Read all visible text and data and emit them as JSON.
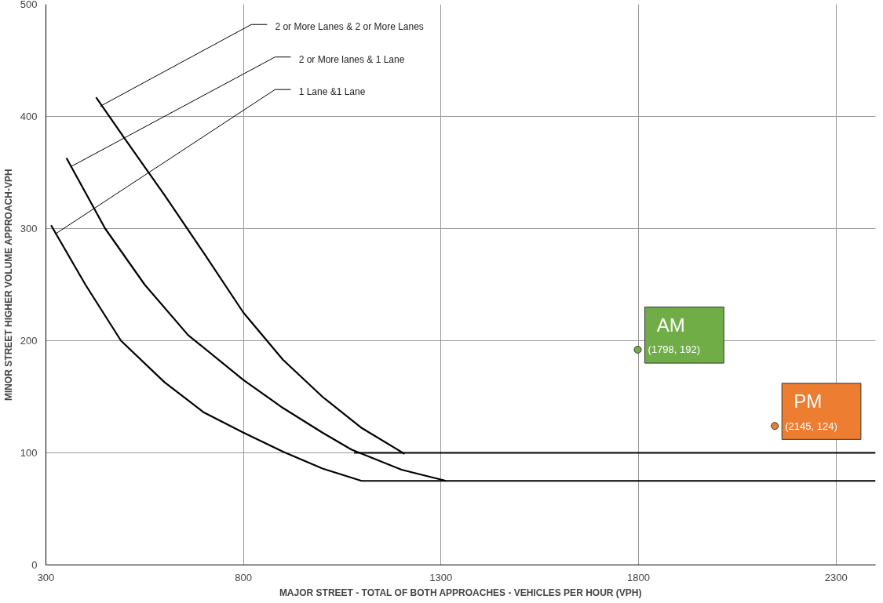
{
  "chart_data": {
    "type": "line",
    "xlabel": "MAJOR STREET - TOTAL OF BOTH APPROACHES - VEHICLES PER HOUR (VPH)",
    "ylabel": "MINOR STREET HIGHER VOLUME APPROACH-VPH",
    "xlim": [
      300,
      2400
    ],
    "ylim": [
      0,
      500
    ],
    "xticks": [
      300,
      800,
      1300,
      1800,
      2300
    ],
    "yticks": [
      0,
      100,
      200,
      300,
      400,
      500
    ],
    "grid": true,
    "legend": false,
    "marker": "none",
    "series": [
      {
        "name": "1 Lane &1 Lane",
        "color": "#000000",
        "x": [
          313,
          400,
          490,
          600,
          700,
          800,
          900,
          1000,
          1099,
          2400
        ],
        "values": [
          303,
          250,
          200,
          163,
          136,
          118,
          101,
          86,
          75,
          75
        ]
      },
      {
        "name": "2 or More lanes & 1 Lane",
        "color": "#000000",
        "x": [
          352,
          450,
          550,
          660,
          800,
          900,
          1000,
          1073,
          1200,
          1313
        ],
        "values": [
          363,
          300,
          250,
          205,
          165,
          140,
          118,
          103,
          85,
          75
        ]
      },
      {
        "name": "2 or More Lanes & 2 or More Lanes",
        "color": "#000000",
        "x": [
          427,
          500,
          600,
          700,
          800,
          900,
          1000,
          1100,
          1208
        ],
        "values": [
          417,
          380,
          330,
          278,
          225,
          183,
          150,
          122,
          99
        ]
      },
      {
        "color": "#000000",
        "x": [
          1080,
          2400
        ],
        "values": [
          100,
          100
        ]
      },
      {
        "name": "AM",
        "type": "scatter",
        "marker": "circle",
        "color": "#70ad47",
        "x": [
          1798
        ],
        "values": [
          192
        ],
        "value_labels": [
          "(1798, 192)"
        ]
      },
      {
        "name": "PM",
        "type": "scatter",
        "marker": "circle",
        "color": "#ed7d31",
        "x": [
          2145
        ],
        "values": [
          124
        ],
        "value_labels": [
          "(2145, 124)"
        ]
      }
    ]
  }
}
